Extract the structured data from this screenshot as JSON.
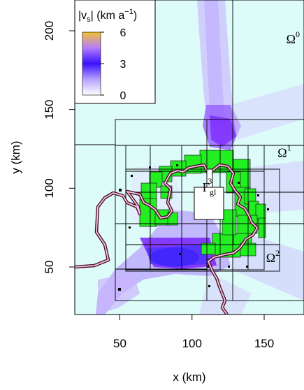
{
  "chart_data": {
    "type": "heatmap",
    "title": "",
    "xlabel": "x (km)",
    "ylabel": "y (km)",
    "xlim": [
      20,
      180
    ],
    "ylim": [
      20,
      220
    ],
    "xticks": [
      50,
      100,
      150
    ],
    "yticks": [
      50,
      100,
      150,
      200
    ],
    "legend": {
      "title": "|v",
      "title_sub": "s",
      "title_unit": "| (km a",
      "title_unit_sup": "−1",
      "title_close": ")",
      "ticks": [
        6,
        3,
        0
      ],
      "colors": [
        "#f2c232",
        "#b57cff",
        "#3a10ff",
        "#c9b0ff",
        "#ffffff"
      ],
      "placement": "top-left"
    },
    "annotations": [
      {
        "base": "Ω",
        "sup": "0",
        "x": 170,
        "y": 192
      },
      {
        "base": "Ω",
        "sup": "1",
        "x": 164,
        "y": 120
      },
      {
        "base": "Ω",
        "sup": "2",
        "x": 156,
        "y": 53
      },
      {
        "base": "Γ",
        "sup": "3",
        "sub": "gl",
        "x": 112,
        "y": 98
      }
    ],
    "colors": {
      "background": "#ddfbf8",
      "fast_flow": "#6a00ff",
      "refined_cells": "#22ee22",
      "grounding_line_outer": "#4a0d25",
      "grounding_line_inner": "#f4c7e3"
    }
  }
}
